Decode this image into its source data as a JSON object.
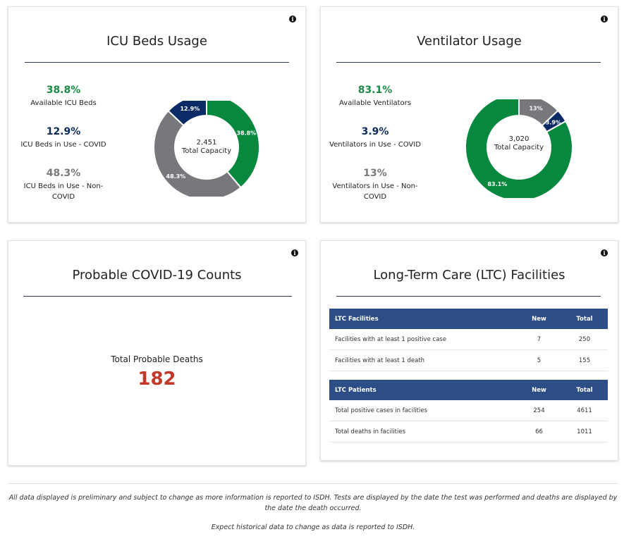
{
  "icu": {
    "title": "ICU Beds Usage",
    "stats": [
      {
        "pct": "38.8%",
        "label": "Available ICU Beds"
      },
      {
        "pct": "12.9%",
        "label": "ICU Beds in Use - COVID"
      },
      {
        "pct": "48.3%",
        "label": "ICU Beds in Use - Non-COVID"
      }
    ],
    "donut": {
      "total": "2,451",
      "center_label": "Total Capacity",
      "segments": [
        {
          "label": "38.8%",
          "value": 38.8,
          "color": "#06893f"
        },
        {
          "label": "48.3%",
          "value": 48.3,
          "color": "#77787b"
        },
        {
          "label": "12.9%",
          "value": 12.9,
          "color": "#0b2b66"
        }
      ]
    }
  },
  "vent": {
    "title": "Ventilator Usage",
    "stats": [
      {
        "pct": "83.1%",
        "label": "Available Ventilators"
      },
      {
        "pct": "3.9%",
        "label": "Ventilators in Use - COVID"
      },
      {
        "pct": "13%",
        "label": "Ventilators in Use - Non-COVID"
      }
    ],
    "donut": {
      "total": "3,020",
      "center_label": "Total Capacity",
      "segments": [
        {
          "label": "13%",
          "value": 13.0,
          "color": "#77787b"
        },
        {
          "label": "3.9%",
          "value": 3.9,
          "color": "#0b2b66"
        },
        {
          "label": "83.1%",
          "value": 83.1,
          "color": "#06893f"
        }
      ]
    }
  },
  "probable": {
    "title": "Probable COVID-19 Counts",
    "deaths_label": "Total Probable Deaths",
    "deaths_value": "182"
  },
  "ltc": {
    "title": "Long-Term Care (LTC) Facilities",
    "facilities": {
      "headers": [
        "LTC Facilities",
        "New",
        "Total"
      ],
      "rows": [
        [
          "Facilities with at least 1 positive case",
          "7",
          "250"
        ],
        [
          "Facilities with at least 1 death",
          "5",
          "155"
        ]
      ]
    },
    "patients": {
      "headers": [
        "LTC Patients",
        "New",
        "Total"
      ],
      "rows": [
        [
          "Total positive cases in facilities",
          "254",
          "4611"
        ],
        [
          "Total deaths in facilities",
          "66",
          "1011"
        ]
      ]
    }
  },
  "info_icon": "i",
  "footer": {
    "disclaimer": "All data displayed is preliminary and subject to change as more information is reported to ISDH. Tests are displayed by the date the test was performed and deaths are displayed by the date the death occurred.",
    "note": "Expect historical data to change as data is reported to ISDH."
  },
  "colors": {
    "green": "#06893f",
    "navy": "#0b2b66",
    "gray": "#77787b",
    "death_red": "#c0392b",
    "table_header": "#2c4d86"
  }
}
